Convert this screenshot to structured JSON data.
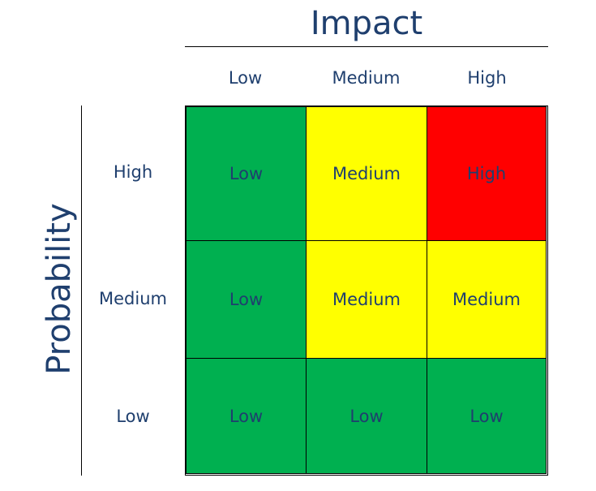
{
  "impact_title": "Impact",
  "probability_title": "Probability",
  "impact_levels": [
    "Low",
    "Medium",
    "High"
  ],
  "probability_levels": [
    "High",
    "Medium",
    "Low"
  ],
  "colors": {
    "low": "#00b050",
    "medium": "#ffff00",
    "high": "#ff0000"
  },
  "matrix": [
    [
      {
        "label": "Low",
        "level": "low"
      },
      {
        "label": "Medium",
        "level": "medium"
      },
      {
        "label": "High",
        "level": "high"
      }
    ],
    [
      {
        "label": "Low",
        "level": "low"
      },
      {
        "label": "Medium",
        "level": "medium"
      },
      {
        "label": "Medium",
        "level": "medium"
      }
    ],
    [
      {
        "label": "Low",
        "level": "low"
      },
      {
        "label": "Low",
        "level": "low"
      },
      {
        "label": "Low",
        "level": "low"
      }
    ]
  ]
}
